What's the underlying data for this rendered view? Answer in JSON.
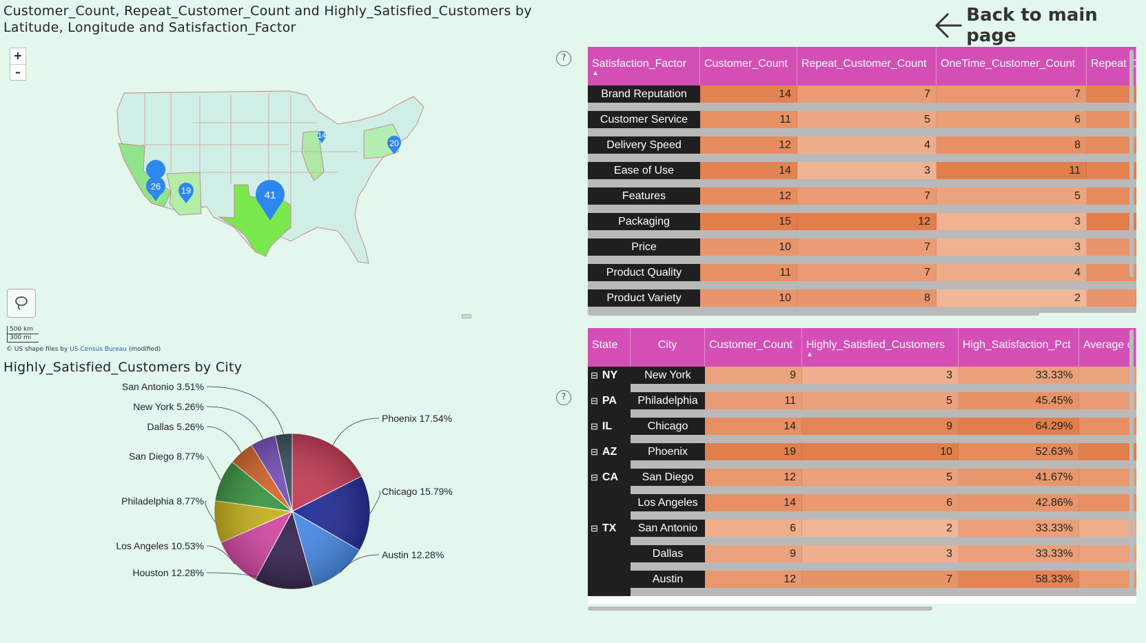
{
  "map": {
    "title": "Customer_Count, Repeat_Customer_Count and Highly_Satisfied_Customers by Latitude, Longitude and Satisfaction_Factor",
    "zoom_in": "+",
    "zoom_out": "–",
    "scale_km": "500 km",
    "scale_mi": "300 mi",
    "credit_prefix": "© US shape files by",
    "credit_link": "US Census Bureau",
    "credit_suffix": "(modified)",
    "markers": [
      "26",
      "19",
      "41",
      "14",
      "20"
    ]
  },
  "back_button": {
    "label": "Back to main page"
  },
  "help_icon": "?",
  "pie": {
    "title": "Highly_Satisfied_Customers by City",
    "labels": [
      "Phoenix 17.54%",
      "Chicago 15.79%",
      "Austin 12.28%",
      "Houston 12.28%",
      "Los Angeles 10.53%",
      "Philadelphia 8.77%",
      "San Diego 8.77%",
      "Dallas 5.26%",
      "New York 5.26%",
      "San Antonio 3.51%"
    ]
  },
  "chart_data": {
    "type": "pie",
    "title": "Highly_Satisfied_Customers by City",
    "categories": [
      "Phoenix",
      "Chicago",
      "Austin",
      "Houston",
      "Los Angeles",
      "Philadelphia",
      "San Diego",
      "Dallas",
      "New York",
      "San Antonio"
    ],
    "values": [
      17.54,
      15.79,
      12.28,
      12.28,
      10.53,
      8.77,
      8.77,
      5.26,
      5.26,
      3.51
    ],
    "colors": [
      "#c8405a",
      "#26309a",
      "#4a8de8",
      "#3a2a55",
      "#d74aa8",
      "#c9b520",
      "#3f9a45",
      "#d86a2e",
      "#7a55c0",
      "#3c5560"
    ]
  },
  "table1": {
    "columns": [
      "Satisfaction_Factor",
      "Customer_Count",
      "Repeat_Customer_Count",
      "OneTime_Customer_Count",
      "Repeat C"
    ],
    "rows": [
      {
        "factor": "Brand Reputation",
        "customer": "14",
        "repeat": "7",
        "onetime": "7"
      },
      {
        "factor": "Customer Service",
        "customer": "11",
        "repeat": "5",
        "onetime": "6"
      },
      {
        "factor": "Delivery Speed",
        "customer": "12",
        "repeat": "4",
        "onetime": "8"
      },
      {
        "factor": "Ease of Use",
        "customer": "14",
        "repeat": "3",
        "onetime": "11"
      },
      {
        "factor": "Features",
        "customer": "12",
        "repeat": "7",
        "onetime": "5"
      },
      {
        "factor": "Packaging",
        "customer": "15",
        "repeat": "12",
        "onetime": "3"
      },
      {
        "factor": "Price",
        "customer": "10",
        "repeat": "7",
        "onetime": "3"
      },
      {
        "factor": "Product Quality",
        "customer": "11",
        "repeat": "7",
        "onetime": "4"
      },
      {
        "factor": "Product Variety",
        "customer": "10",
        "repeat": "8",
        "onetime": "2"
      }
    ]
  },
  "table2": {
    "columns": [
      "State",
      "City",
      "Customer_Count",
      "Highly_Satisfied_Customers",
      "High_Satisfaction_Pct",
      "Average c"
    ],
    "collapse_icon": "⊟",
    "rows": [
      {
        "state": "NY",
        "city": "New York",
        "customer": "9",
        "highly": "3",
        "pct": "33.33%"
      },
      {
        "state": "PA",
        "city": "Philadelphia",
        "customer": "11",
        "highly": "5",
        "pct": "45.45%"
      },
      {
        "state": "IL",
        "city": "Chicago",
        "customer": "14",
        "highly": "9",
        "pct": "64.29%"
      },
      {
        "state": "AZ",
        "city": "Phoenix",
        "customer": "19",
        "highly": "10",
        "pct": "52.63%"
      },
      {
        "state": "CA",
        "city": "San Diego",
        "customer": "12",
        "highly": "5",
        "pct": "41.67%"
      },
      {
        "state": "",
        "city": "Los Angeles",
        "customer": "14",
        "highly": "6",
        "pct": "42.86%"
      },
      {
        "state": "TX",
        "city": "San Antonio",
        "customer": "6",
        "highly": "2",
        "pct": "33.33%"
      },
      {
        "state": "",
        "city": "Dallas",
        "customer": "9",
        "highly": "3",
        "pct": "33.33%"
      },
      {
        "state": "",
        "city": "Austin",
        "customer": "12",
        "highly": "7",
        "pct": "58.33%"
      }
    ]
  }
}
